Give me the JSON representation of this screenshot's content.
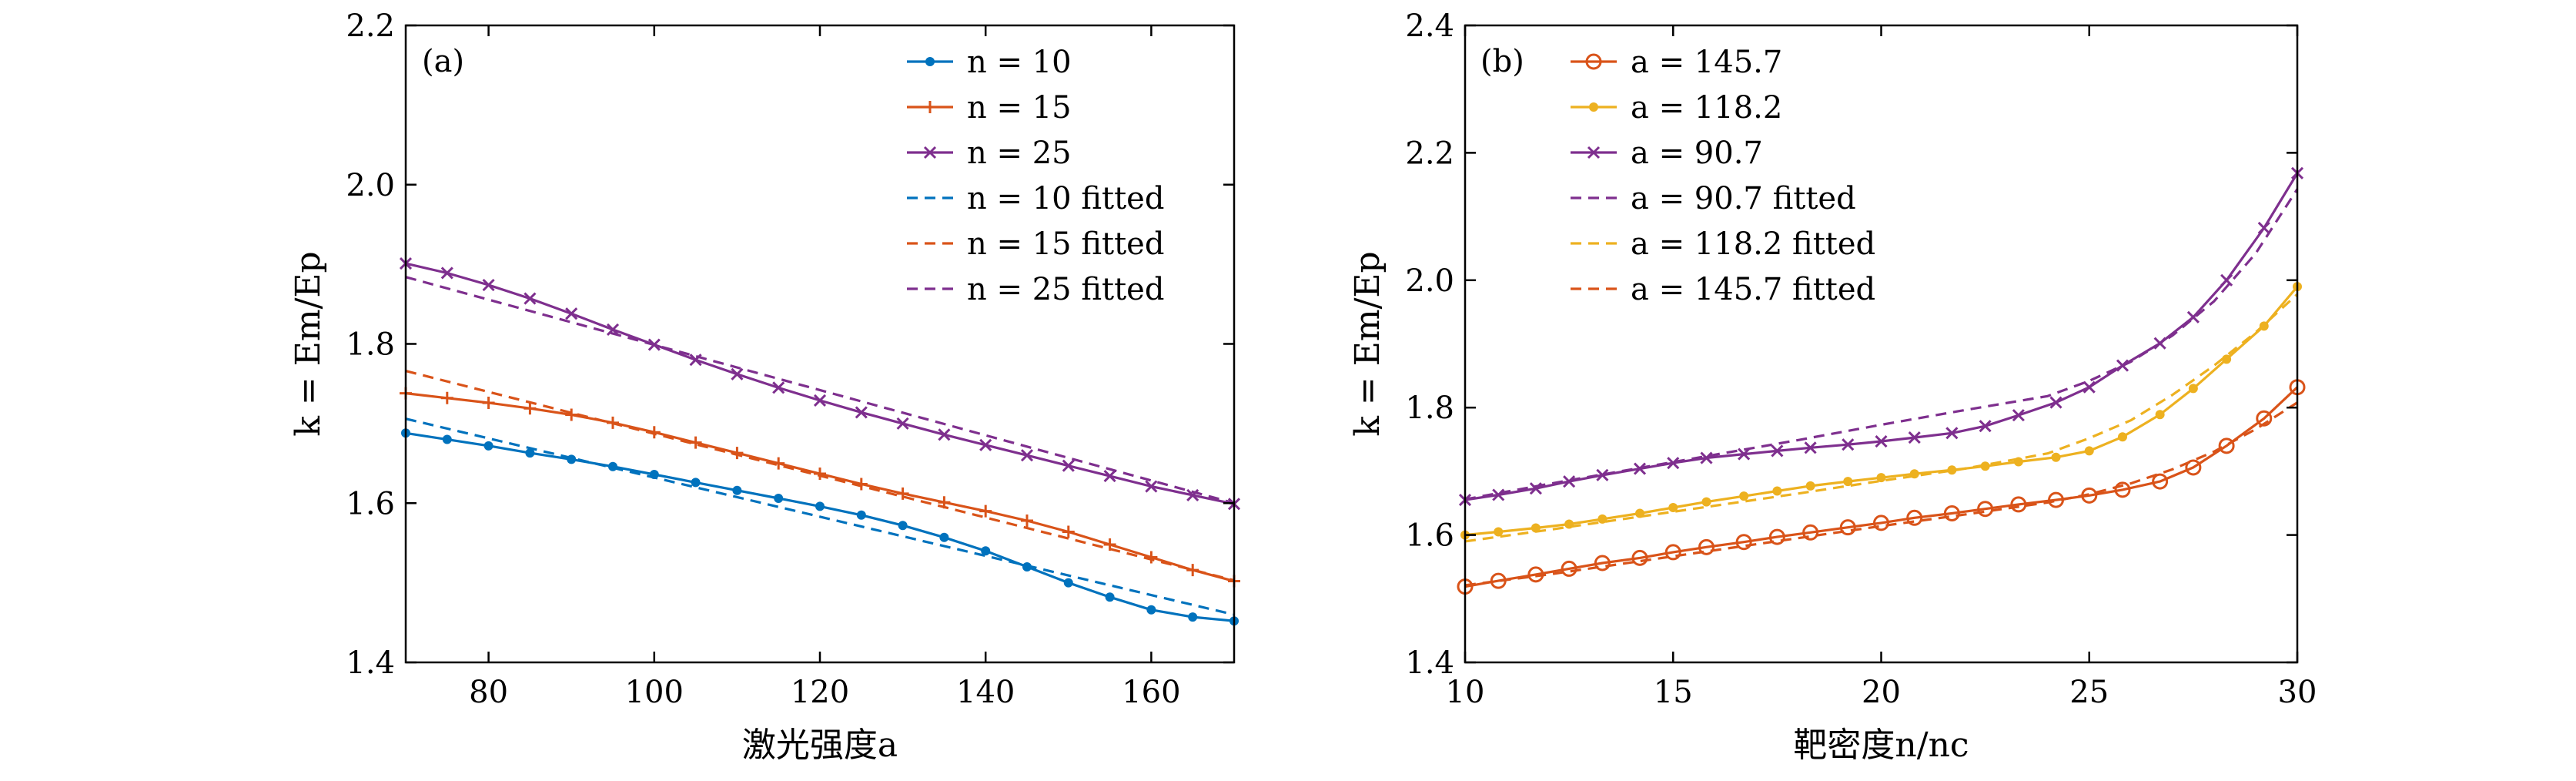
{
  "chart_data": [
    {
      "type": "line",
      "panel_label": "(a)",
      "xlabel": "激光强度a",
      "ylabel": "k = Em/Ep",
      "xlim": [
        70,
        170
      ],
      "ylim": [
        1.4,
        2.2
      ],
      "xticks": [
        80,
        100,
        120,
        140,
        160
      ],
      "yticks": [
        1.4,
        1.6,
        1.8,
        2.0,
        2.2
      ],
      "xtick_labels": [
        "80",
        "100",
        "120",
        "140",
        "160"
      ],
      "ytick_labels": [
        "1.4",
        "1.6",
        "1.8",
        "2.0",
        "2.2"
      ],
      "grid": false,
      "legend_position": "top-right",
      "series": [
        {
          "name": "n = 10",
          "color": "#0072BD",
          "style": "solid",
          "marker": "dot",
          "x": [
            70,
            75,
            80,
            85,
            90,
            95,
            100,
            105,
            110,
            115,
            120,
            125,
            130,
            135,
            140,
            145,
            150,
            155,
            160,
            165,
            170
          ],
          "y": [
            1.688,
            1.68,
            1.672,
            1.663,
            1.655,
            1.646,
            1.636,
            1.626,
            1.616,
            1.606,
            1.596,
            1.585,
            1.572,
            1.557,
            1.54,
            1.52,
            1.5,
            1.482,
            1.466,
            1.457,
            1.452
          ]
        },
        {
          "name": "n = 15",
          "color": "#D95319",
          "style": "solid",
          "marker": "plus",
          "x": [
            70,
            75,
            80,
            85,
            90,
            95,
            100,
            105,
            110,
            115,
            120,
            125,
            130,
            135,
            140,
            145,
            150,
            155,
            160,
            165,
            170
          ],
          "y": [
            1.738,
            1.732,
            1.726,
            1.719,
            1.711,
            1.701,
            1.689,
            1.676,
            1.663,
            1.65,
            1.637,
            1.624,
            1.612,
            1.601,
            1.59,
            1.578,
            1.564,
            1.548,
            1.532,
            1.516,
            1.502
          ]
        },
        {
          "name": "n = 25",
          "color": "#7E2F8E",
          "style": "solid",
          "marker": "x",
          "x": [
            70,
            75,
            80,
            85,
            90,
            95,
            100,
            105,
            110,
            115,
            120,
            125,
            130,
            135,
            140,
            145,
            150,
            155,
            160,
            165,
            170
          ],
          "y": [
            1.901,
            1.889,
            1.874,
            1.857,
            1.838,
            1.818,
            1.799,
            1.78,
            1.762,
            1.745,
            1.729,
            1.714,
            1.7,
            1.686,
            1.673,
            1.66,
            1.647,
            1.634,
            1.621,
            1.61,
            1.599
          ]
        },
        {
          "name": "n = 10 fitted",
          "color": "#0072BD",
          "style": "dashed",
          "marker": "none",
          "x": [
            70,
            170
          ],
          "y": [
            1.706,
            1.46
          ]
        },
        {
          "name": "n = 15 fitted",
          "color": "#D95319",
          "style": "dashed",
          "marker": "none",
          "x": [
            70,
            170
          ],
          "y": [
            1.766,
            1.503
          ]
        },
        {
          "name": "n = 25 fitted",
          "color": "#7E2F8E",
          "style": "dashed",
          "marker": "none",
          "x": [
            70,
            170
          ],
          "y": [
            1.884,
            1.6
          ]
        }
      ]
    },
    {
      "type": "line",
      "panel_label": "(b)",
      "xlabel": "靶密度n/nc",
      "ylabel": "k = Em/Ep",
      "xlim": [
        10,
        30
      ],
      "ylim": [
        1.4,
        2.4
      ],
      "xticks": [
        10,
        15,
        20,
        25,
        30
      ],
      "yticks": [
        1.4,
        1.6,
        1.8,
        2.0,
        2.2,
        2.4
      ],
      "xtick_labels": [
        "10",
        "15",
        "20",
        "25",
        "30"
      ],
      "ytick_labels": [
        "1.4",
        "1.6",
        "1.8",
        "2.0",
        "2.2",
        "2.4"
      ],
      "grid": false,
      "legend_position": "top-left",
      "series": [
        {
          "name": "a = 145.7",
          "color": "#D95319",
          "style": "solid",
          "marker": "circle",
          "x": [
            10,
            10.8,
            11.7,
            12.5,
            13.3,
            14.2,
            15,
            15.8,
            16.7,
            17.5,
            18.3,
            19.2,
            20,
            20.8,
            21.7,
            22.5,
            23.3,
            24.2,
            25,
            25.8,
            26.7,
            27.5,
            28.3,
            29.2,
            30
          ],
          "y": [
            1.519,
            1.528,
            1.538,
            1.547,
            1.556,
            1.564,
            1.573,
            1.581,
            1.589,
            1.597,
            1.604,
            1.612,
            1.619,
            1.627,
            1.634,
            1.641,
            1.648,
            1.655,
            1.662,
            1.671,
            1.684,
            1.706,
            1.74,
            1.783,
            1.832
          ]
        },
        {
          "name": "a = 118.2",
          "color": "#EDB120",
          "style": "solid",
          "marker": "dot",
          "x": [
            10,
            10.8,
            11.7,
            12.5,
            13.3,
            14.2,
            15,
            15.8,
            16.7,
            17.5,
            18.3,
            19.2,
            20,
            20.8,
            21.7,
            22.5,
            23.3,
            24.2,
            25,
            25.8,
            26.7,
            27.5,
            28.3,
            29.2,
            30
          ],
          "y": [
            1.6,
            1.605,
            1.611,
            1.617,
            1.625,
            1.634,
            1.643,
            1.652,
            1.661,
            1.669,
            1.677,
            1.684,
            1.69,
            1.696,
            1.702,
            1.708,
            1.715,
            1.722,
            1.732,
            1.754,
            1.789,
            1.83,
            1.876,
            1.928,
            1.99
          ]
        },
        {
          "name": "a = 90.7",
          "color": "#7E2F8E",
          "style": "solid",
          "marker": "x",
          "x": [
            10,
            10.8,
            11.7,
            12.5,
            13.3,
            14.2,
            15,
            15.8,
            16.7,
            17.5,
            18.3,
            19.2,
            20,
            20.8,
            21.7,
            22.5,
            23.3,
            24.2,
            25,
            25.8,
            26.7,
            27.5,
            28.3,
            29.2,
            30
          ],
          "y": [
            1.655,
            1.663,
            1.673,
            1.684,
            1.694,
            1.704,
            1.713,
            1.721,
            1.727,
            1.732,
            1.737,
            1.742,
            1.747,
            1.753,
            1.76,
            1.771,
            1.788,
            1.808,
            1.832,
            1.866,
            1.901,
            1.942,
            2.0,
            2.082,
            2.168
          ]
        },
        {
          "name": "a = 90.7 fitted",
          "color": "#7E2F8E",
          "style": "dashed",
          "marker": "none",
          "x": [
            10,
            12,
            14,
            16,
            18,
            20,
            22,
            24,
            25,
            26,
            27,
            28,
            29,
            30
          ],
          "y": [
            1.656,
            1.68,
            1.703,
            1.726,
            1.749,
            1.773,
            1.796,
            1.818,
            1.842,
            1.872,
            1.913,
            1.967,
            2.042,
            2.143
          ]
        },
        {
          "name": "a = 118.2 fitted",
          "color": "#EDB120",
          "style": "dashed",
          "marker": "none",
          "x": [
            10,
            12,
            14,
            16,
            18,
            20,
            22,
            24,
            25,
            26,
            27,
            28,
            29,
            30
          ],
          "y": [
            1.59,
            1.608,
            1.627,
            1.646,
            1.665,
            1.685,
            1.704,
            1.728,
            1.752,
            1.78,
            1.82,
            1.866,
            1.918,
            1.978
          ]
        },
        {
          "name": "a = 145.7 fitted",
          "color": "#D95319",
          "style": "dashed",
          "marker": "none",
          "x": [
            10,
            12,
            14,
            16,
            18,
            20,
            22,
            24,
            25,
            26,
            27,
            28,
            29,
            30
          ],
          "y": [
            1.521,
            1.538,
            1.557,
            1.576,
            1.595,
            1.614,
            1.632,
            1.651,
            1.664,
            1.681,
            1.703,
            1.731,
            1.766,
            1.808
          ]
        }
      ]
    }
  ]
}
